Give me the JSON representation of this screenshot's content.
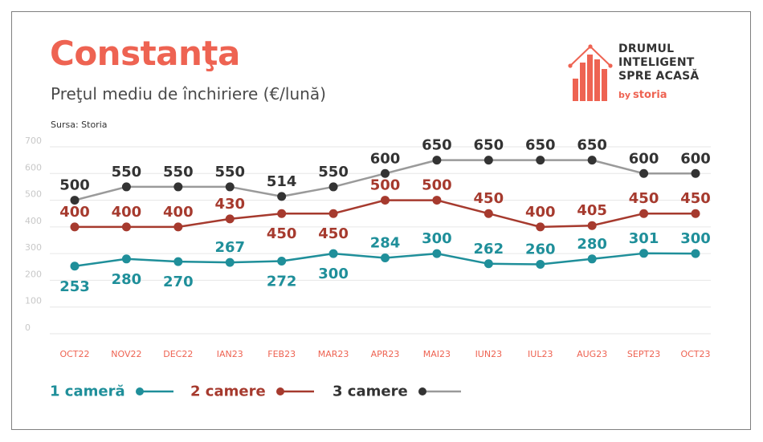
{
  "header": {
    "title": "Constanţa",
    "subtitle": "Preţul mediu de închiriere (€/lună)",
    "source": "Sursa: Storia"
  },
  "logo": {
    "line1": "DRUMUL",
    "line2": "INTELIGENT",
    "line3": "SPRE ACASĂ",
    "by": "by",
    "brand": "storia"
  },
  "colors": {
    "accent": "#ee6352",
    "one_room": "#1f8f9a",
    "two_rooms": "#a63a2e",
    "three_rooms": "#333333",
    "three_rooms_line": "#9a9a9a",
    "grid": "#e6e6e6",
    "tick": "#c8c8c8"
  },
  "chart_data": {
    "type": "line",
    "categories": [
      "OCT22",
      "NOV22",
      "DEC22",
      "IAN23",
      "FEB23",
      "MAR23",
      "APR23",
      "MAI23",
      "IUN23",
      "IUL23",
      "AUG23",
      "SEPT23",
      "OCT23"
    ],
    "ylim": [
      0,
      700
    ],
    "yticks": [
      0,
      100,
      200,
      300,
      400,
      500,
      600,
      700
    ],
    "grid": true,
    "legend_position": "bottom-left",
    "series": [
      {
        "name": "1 cameră",
        "key": "one_room",
        "values": [
          253,
          280,
          270,
          267,
          272,
          300,
          284,
          300,
          262,
          260,
          280,
          301,
          300
        ],
        "label_pos": [
          "below",
          "below",
          "below",
          "above",
          "below",
          "below",
          "above",
          "above",
          "above",
          "above",
          "above",
          "above",
          "above"
        ]
      },
      {
        "name": "2 camere",
        "key": "two_rooms",
        "values": [
          400,
          400,
          400,
          430,
          450,
          450,
          500,
          500,
          450,
          400,
          405,
          450,
          450
        ],
        "label_pos": [
          "above",
          "above",
          "above",
          "above",
          "below",
          "below",
          "above",
          "above",
          "above",
          "above",
          "above",
          "above",
          "above"
        ]
      },
      {
        "name": "3 camere",
        "key": "three_rooms",
        "values": [
          500,
          550,
          550,
          550,
          514,
          550,
          600,
          650,
          650,
          650,
          650,
          600,
          600
        ],
        "label_pos": [
          "above",
          "above",
          "above",
          "above",
          "above",
          "above",
          "above",
          "above",
          "above",
          "above",
          "above",
          "above",
          "above"
        ]
      }
    ]
  }
}
